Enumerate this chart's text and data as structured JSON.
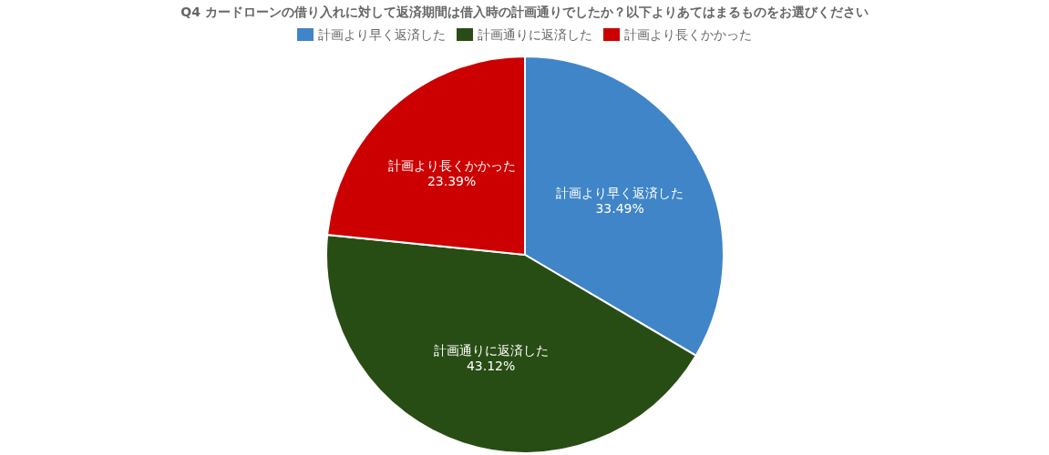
{
  "chart_data": {
    "type": "pie",
    "title": "Q4 カードローンの借り入れに対して返済期間は借入時の計画通りでしたか？以下よりあてはまるものをお選びください",
    "categories": [
      "計画より早く返済した",
      "計画通りに返済した",
      "計画より長くかかった"
    ],
    "values": [
      33.49,
      43.12,
      23.39
    ],
    "colors": [
      "#3f85c7",
      "#284d14",
      "#cc0000"
    ],
    "value_labels": [
      "33.49%",
      "43.12%",
      "23.39%"
    ],
    "legend": "top"
  }
}
